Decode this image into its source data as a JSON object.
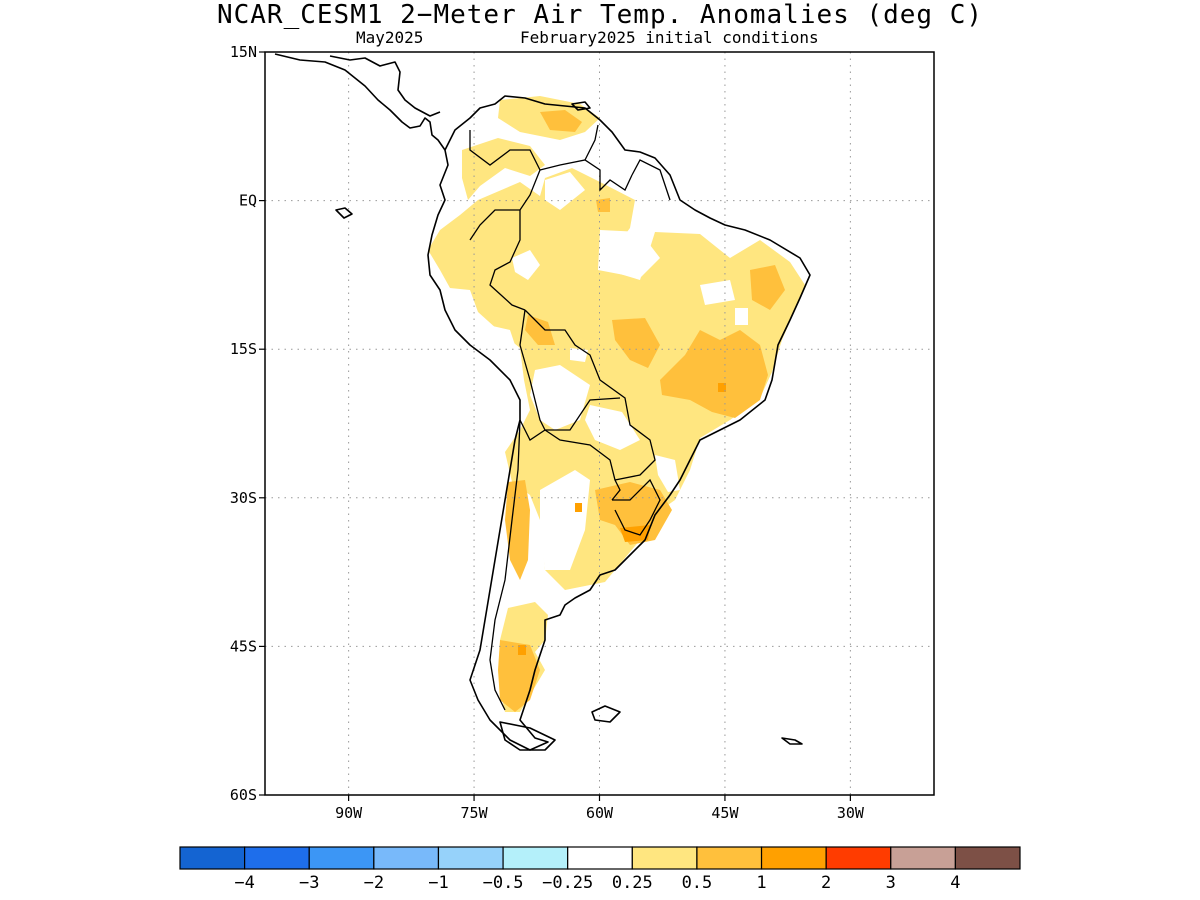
{
  "title": "NCAR_CESM1 2−Meter Air Temp. Anomalies (deg C)",
  "subtitle_left": "May2025",
  "subtitle_right": "February2025 initial conditions",
  "map": {
    "lon_range": [
      -100,
      -20
    ],
    "lat_range": [
      -60,
      15
    ],
    "lat_ticks": [
      {
        "value": 15,
        "label": "15N"
      },
      {
        "value": 0,
        "label": "EQ"
      },
      {
        "value": -15,
        "label": "15S"
      },
      {
        "value": -30,
        "label": "30S"
      },
      {
        "value": -45,
        "label": "45S"
      },
      {
        "value": -60,
        "label": "60S"
      }
    ],
    "lon_ticks": [
      {
        "value": -90,
        "label": "90W"
      },
      {
        "value": -75,
        "label": "75W"
      },
      {
        "value": -60,
        "label": "60W"
      },
      {
        "value": -45,
        "label": "45W"
      },
      {
        "value": -30,
        "label": "30W"
      }
    ],
    "grid": true,
    "colors": {
      "c025_05": "#ffe680",
      "c05_1": "#ffc03c",
      "c1_2": "#ffa000"
    }
  },
  "colorbar": {
    "colors": [
      "#1464d2",
      "#1e6eeb",
      "#3c96f5",
      "#78b9fa",
      "#96d2fa",
      "#b4f0fa",
      "#ffffff",
      "#ffe680",
      "#ffc03c",
      "#ffa000",
      "#ff3c00",
      "#c8a096",
      "#7d5046"
    ],
    "labels": [
      "−4",
      "−3",
      "−2",
      "−1",
      "−0.5",
      "−0.25",
      "0.25",
      "0.5",
      "1",
      "2",
      "3",
      "4"
    ]
  }
}
